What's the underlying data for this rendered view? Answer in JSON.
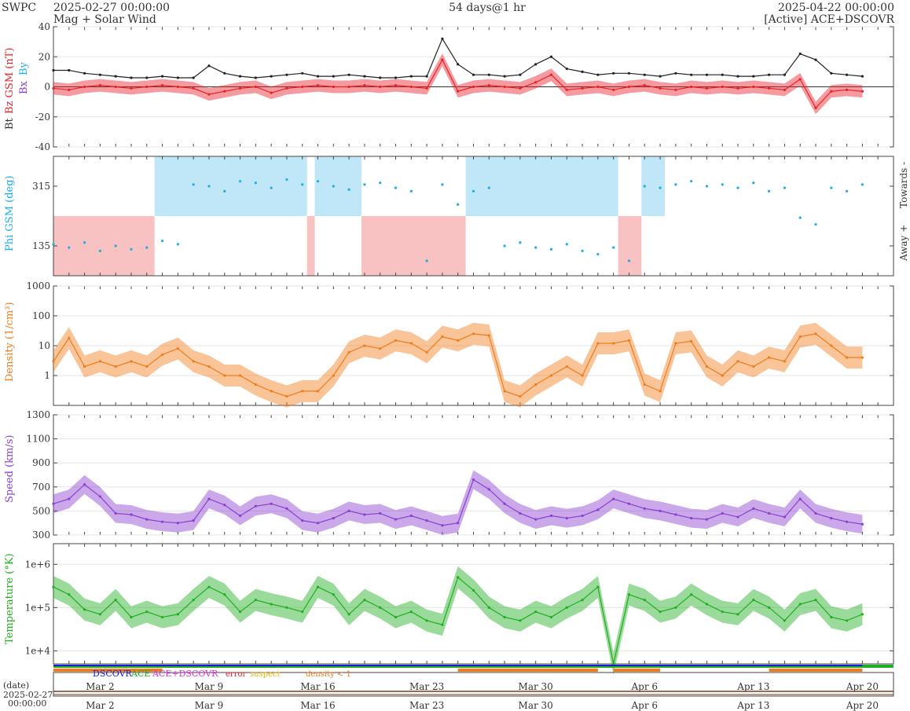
{
  "header": {
    "org": "SWPC",
    "start": "2025-02-27 00:00:00",
    "subtitle": "Mag + Solar Wind",
    "span": "54 days@1 hr",
    "end": "2025-04-22 00:00:00",
    "source": "[Active] ACE+DSCOVR"
  },
  "colors": {
    "bt": "#222222",
    "bz": "#e8212a",
    "by": "#1aaee8",
    "bx": "#8a3fd0",
    "phi": "#1aaee8",
    "towards_fill": "#bfe7f7",
    "away_fill": "#f9c2c2",
    "density": "#f07c1a",
    "speed": "#8a3fd0",
    "temperature": "#1fae1f",
    "dscovr": "#1a1adb",
    "ace": "#1fae1f",
    "combined": "#e030e0",
    "error": "#e8212a",
    "suspect": "#f0b400",
    "density_lt_1": "#f07c1a"
  },
  "legend": {
    "dscovr": "DSCOVR",
    "ace": "ACE",
    "combined": "ACE+DSCOVR",
    "error": "error",
    "suspect": "suspect",
    "density": "density < 1"
  },
  "footer": {
    "date_label": "(date)",
    "date_value": "2025-02-27",
    "time_value": "00:00:00"
  },
  "chart_data": [
    {
      "type": "line",
      "panel": "mag",
      "ylabel_bt": "Bt",
      "ylabel_bz": "Bz GSM (nT)",
      "ylabel_bx": "Bx",
      "ylabel_by": "By",
      "ylim": [
        -40,
        40
      ],
      "yticks": [
        "40",
        "20",
        "0",
        "-20",
        "-40"
      ],
      "x_days": [
        0,
        1,
        2,
        3,
        4,
        5,
        6,
        7,
        8,
        9,
        10,
        11,
        12,
        13,
        14,
        15,
        16,
        17,
        18,
        19,
        20,
        21,
        22,
        23,
        24,
        25,
        26,
        27,
        28,
        29,
        30,
        31,
        32,
        33,
        34,
        35,
        36,
        37,
        38,
        39,
        40,
        41,
        42,
        43,
        44,
        45,
        46,
        47,
        48,
        49,
        50,
        51,
        52
      ],
      "series": [
        {
          "name": "Bt",
          "values": [
            11,
            11,
            9,
            8,
            7,
            6,
            6,
            7,
            6,
            6,
            14,
            9,
            7,
            6,
            7,
            8,
            9,
            7,
            7,
            8,
            7,
            6,
            6,
            7,
            7,
            32,
            15,
            8,
            8,
            7,
            8,
            15,
            20,
            12,
            10,
            8,
            9,
            9,
            8,
            7,
            9,
            8,
            8,
            8,
            7,
            7,
            8,
            8,
            22,
            18,
            9,
            8,
            7
          ]
        },
        {
          "name": "Bz",
          "values": [
            -1,
            -2,
            0,
            1,
            0,
            -1,
            0,
            1,
            0,
            -1,
            -5,
            -3,
            -1,
            0,
            -4,
            -1,
            0,
            1,
            0,
            0,
            1,
            0,
            1,
            0,
            -1,
            18,
            -3,
            0,
            1,
            0,
            -1,
            3,
            8,
            -2,
            -1,
            0,
            -2,
            0,
            1,
            -1,
            -2,
            0,
            -1,
            0,
            -1,
            0,
            -1,
            -2,
            5,
            -14,
            -3,
            -2,
            -3
          ]
        }
      ]
    },
    {
      "type": "scatter",
      "panel": "phi",
      "ylabel": "Phi GSM (deg)",
      "yticks": [
        "315",
        "135"
      ],
      "ylim": [
        45,
        405
      ],
      "right_labels": [
        "Towards -",
        "Away +"
      ],
      "x_days": [
        0,
        1,
        2,
        3,
        4,
        5,
        6,
        7,
        8,
        9,
        10,
        11,
        12,
        13,
        14,
        15,
        16,
        17,
        18,
        19,
        20,
        21,
        22,
        23,
        24,
        25,
        26,
        27,
        28,
        29,
        30,
        31,
        32,
        33,
        34,
        35,
        36,
        37,
        38,
        39,
        40,
        41,
        42,
        43,
        44,
        45,
        46,
        47,
        48,
        49,
        50,
        51,
        52
      ],
      "values": [
        140,
        130,
        145,
        120,
        135,
        125,
        130,
        150,
        140,
        320,
        315,
        300,
        330,
        325,
        310,
        335,
        320,
        330,
        315,
        305,
        320,
        325,
        310,
        300,
        90,
        320,
        260,
        300,
        310,
        135,
        145,
        130,
        125,
        140,
        120,
        110,
        130,
        90,
        315,
        310,
        320,
        330,
        315,
        320,
        310,
        325,
        300,
        310,
        220,
        200,
        310,
        300,
        320
      ],
      "sectors": [
        {
          "from": 0,
          "to": 6.5,
          "kind": "away"
        },
        {
          "from": 6.5,
          "to": 16.3,
          "kind": "towards"
        },
        {
          "from": 16.3,
          "to": 16.8,
          "kind": "away"
        },
        {
          "from": 16.8,
          "to": 19.8,
          "kind": "towards"
        },
        {
          "from": 19.8,
          "to": 26.5,
          "kind": "away"
        },
        {
          "from": 26.5,
          "to": 36.3,
          "kind": "towards"
        },
        {
          "from": 36.3,
          "to": 37.8,
          "kind": "away"
        },
        {
          "from": 37.8,
          "to": 39.3,
          "kind": "towards"
        }
      ]
    },
    {
      "type": "line",
      "panel": "density",
      "ylabel": "Density (1/cm³)",
      "yscale": "log",
      "yticks": [
        "1000",
        "100",
        "10",
        "1"
      ],
      "ylim": [
        0.1,
        1000
      ],
      "x_days": [
        0,
        1,
        2,
        3,
        4,
        5,
        6,
        7,
        8,
        9,
        10,
        11,
        12,
        13,
        14,
        15,
        16,
        17,
        18,
        19,
        20,
        21,
        22,
        23,
        24,
        25,
        26,
        27,
        28,
        29,
        30,
        31,
        32,
        33,
        34,
        35,
        36,
        37,
        38,
        39,
        40,
        41,
        42,
        43,
        44,
        45,
        46,
        47,
        48,
        49,
        50,
        51,
        52
      ],
      "values": [
        3,
        18,
        2,
        3,
        2,
        3,
        2,
        5,
        8,
        3,
        2,
        1,
        1,
        0.5,
        0.3,
        0.2,
        0.3,
        0.3,
        1,
        6,
        10,
        8,
        15,
        12,
        6,
        20,
        15,
        25,
        22,
        0.3,
        0.2,
        0.5,
        1,
        2,
        1,
        12,
        12,
        15,
        0.5,
        0.3,
        12,
        14,
        2,
        1,
        3,
        2,
        4,
        3,
        20,
        25,
        10,
        4,
        4
      ]
    },
    {
      "type": "line",
      "panel": "speed",
      "ylabel": "Speed (km/s)",
      "yticks": [
        "1300",
        "1100",
        "900",
        "700",
        "500",
        "300"
      ],
      "ylim": [
        300,
        1300
      ],
      "x_days": [
        0,
        1,
        2,
        3,
        4,
        5,
        6,
        7,
        8,
        9,
        10,
        11,
        12,
        13,
        14,
        15,
        16,
        17,
        18,
        19,
        20,
        21,
        22,
        23,
        24,
        25,
        26,
        27,
        28,
        29,
        30,
        31,
        32,
        33,
        34,
        35,
        36,
        37,
        38,
        39,
        40,
        41,
        42,
        43,
        44,
        45,
        46,
        47,
        48,
        49,
        50,
        51,
        52
      ],
      "values": [
        560,
        600,
        720,
        620,
        480,
        470,
        430,
        410,
        400,
        420,
        600,
        550,
        460,
        540,
        560,
        520,
        420,
        400,
        440,
        500,
        470,
        480,
        430,
        460,
        420,
        380,
        400,
        760,
        680,
        560,
        480,
        430,
        460,
        440,
        460,
        510,
        600,
        560,
        520,
        500,
        470,
        440,
        430,
        480,
        450,
        520,
        480,
        450,
        600,
        480,
        440,
        410,
        390
      ]
    },
    {
      "type": "line",
      "panel": "temperature",
      "ylabel": "Temperature (°K)",
      "yscale": "log",
      "yticks": [
        "1e+6",
        "1e+5",
        "1e+4"
      ],
      "ylim": [
        5000,
        3000000
      ],
      "x_days": [
        0,
        1,
        2,
        3,
        4,
        5,
        6,
        7,
        8,
        9,
        10,
        11,
        12,
        13,
        14,
        15,
        16,
        17,
        18,
        19,
        20,
        21,
        22,
        23,
        24,
        25,
        26,
        27,
        28,
        29,
        30,
        31,
        32,
        33,
        34,
        35,
        36,
        37,
        38,
        39,
        40,
        41,
        42,
        43,
        44,
        45,
        46,
        47,
        48,
        49,
        50,
        51,
        52
      ],
      "values": [
        300000,
        200000,
        90000,
        70000,
        150000,
        60000,
        80000,
        60000,
        70000,
        150000,
        300000,
        200000,
        80000,
        150000,
        120000,
        100000,
        80000,
        300000,
        200000,
        70000,
        150000,
        100000,
        60000,
        80000,
        50000,
        40000,
        500000,
        250000,
        100000,
        60000,
        50000,
        80000,
        60000,
        100000,
        150000,
        300000,
        5000,
        200000,
        150000,
        80000,
        100000,
        200000,
        120000,
        80000,
        70000,
        150000,
        100000,
        50000,
        120000,
        150000,
        60000,
        50000,
        70000
      ]
    }
  ],
  "x_axis": {
    "ticks": [
      {
        "day": 3,
        "label": "Mar 2"
      },
      {
        "day": 10,
        "label": "Mar 9"
      },
      {
        "day": 17,
        "label": "Mar 16"
      },
      {
        "day": 24,
        "label": "Mar 23"
      },
      {
        "day": 31,
        "label": "Mar 30"
      },
      {
        "day": 38,
        "label": "Apr 6"
      },
      {
        "day": 45,
        "label": "Apr 13"
      },
      {
        "day": 52,
        "label": "Apr 20"
      }
    ]
  }
}
